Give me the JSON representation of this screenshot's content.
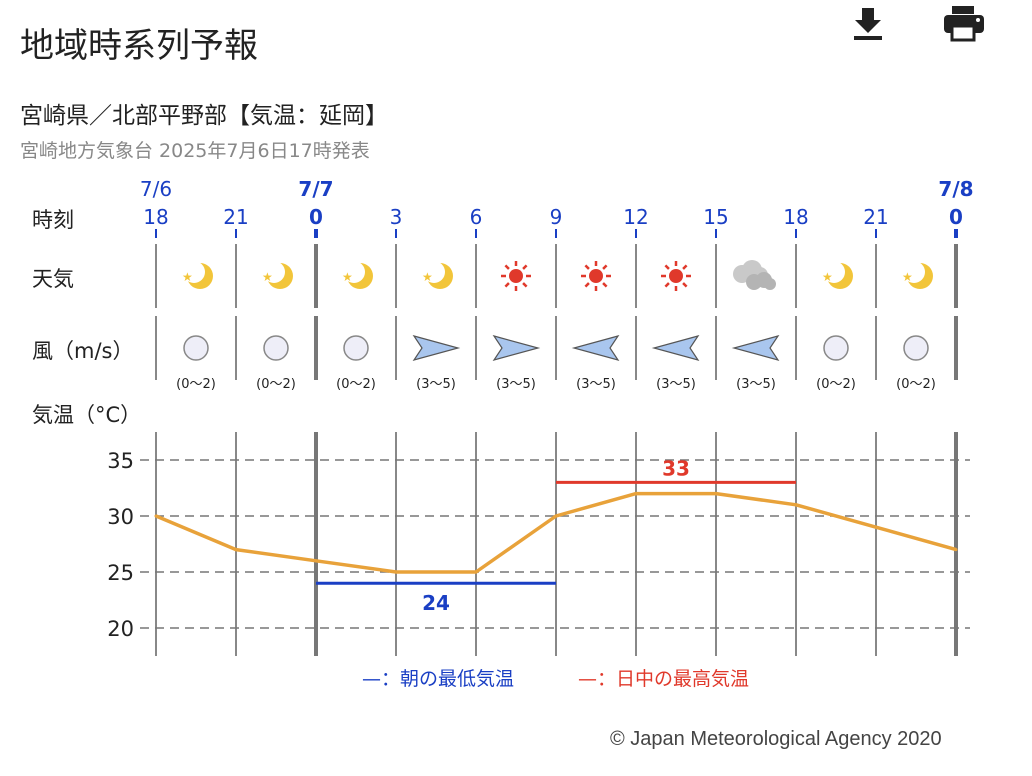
{
  "header": {
    "title": "地域時系列予報",
    "download_icon": "download-icon",
    "print_icon": "printer-icon"
  },
  "region": {
    "name": "宮崎県／北部平野部【気温：延岡】",
    "issued": "宮崎地方気象台 2025年7月6日17時発表"
  },
  "row_labels": {
    "time": "時刻",
    "weather": "天気",
    "wind": "風（m/s）",
    "temp": "気温（°C）"
  },
  "date_labels": [
    {
      "label": "7/6",
      "col": 0,
      "bold": false
    },
    {
      "label": "7/7",
      "col": 2,
      "bold": true
    },
    {
      "label": "7/8",
      "col": 10,
      "bold": true
    }
  ],
  "hours": [
    "18",
    "21",
    "0",
    "3",
    "6",
    "9",
    "12",
    "15",
    "18",
    "21",
    "0"
  ],
  "weather": [
    "clear-night-icon",
    "clear-night-icon",
    "clear-night-icon",
    "clear-night-icon",
    "sunny-icon",
    "sunny-icon",
    "sunny-icon",
    "cloudy-icon",
    "clear-night-icon",
    "clear-night-icon"
  ],
  "wind": [
    {
      "dir": "calm",
      "speed": "(0〜2)"
    },
    {
      "dir": "calm",
      "speed": "(0〜2)"
    },
    {
      "dir": "calm",
      "speed": "(0〜2)"
    },
    {
      "dir": "west",
      "speed": "(3〜5)"
    },
    {
      "dir": "west",
      "speed": "(3〜5)"
    },
    {
      "dir": "east",
      "speed": "(3〜5)"
    },
    {
      "dir": "east",
      "speed": "(3〜5)"
    },
    {
      "dir": "east",
      "speed": "(3〜5)"
    },
    {
      "dir": "calm",
      "speed": "(0〜2)"
    },
    {
      "dir": "calm",
      "speed": "(0〜2)"
    }
  ],
  "legend": {
    "min_label": "—：朝の最低気温",
    "max_label": "—：日中の最高気温"
  },
  "colors": {
    "blue": "#1a3fc4",
    "red": "#e0392b",
    "temp_line": "#e8a23a",
    "grid": "#888888"
  },
  "copyright": "© Japan Meteorological Agency 2020",
  "chart_data": {
    "type": "line",
    "x": [
      "18",
      "21",
      "0",
      "3",
      "6",
      "9",
      "12",
      "15",
      "18",
      "21",
      "0"
    ],
    "ylabel": "気温（°C）",
    "ylim": [
      20,
      35
    ],
    "yticks": [
      "20",
      "25",
      "30",
      "35"
    ],
    "grid": true,
    "series": [
      {
        "values": [
          30,
          27,
          26,
          25,
          25,
          30,
          32,
          32,
          31,
          29,
          27
        ]
      }
    ],
    "annotations": [
      {
        "label": "24",
        "value": 24,
        "from_index": 2,
        "to_index": 5,
        "color": "#1a3fc4"
      },
      {
        "label": "33",
        "value": 33,
        "from_index": 5,
        "to_index": 8,
        "color": "#e0392b"
      }
    ]
  }
}
